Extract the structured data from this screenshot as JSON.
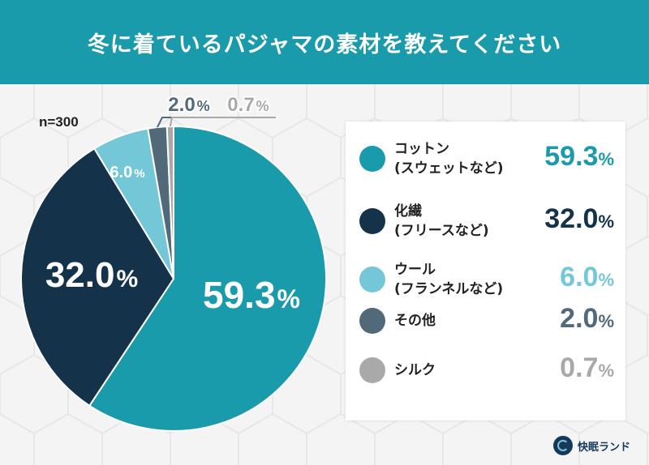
{
  "header": {
    "title": "冬に着ているパジャマの素材を教えてください"
  },
  "sample_size": "n=300",
  "brand": {
    "name": "快眠ランド",
    "logo_icon": "pajama-brand-logo-icon"
  },
  "colors": {
    "header_bg": "#1a9bab",
    "cotton": "#1a9bab",
    "synthetic": "#14334a",
    "wool": "#74c7d6",
    "other": "#52697a",
    "silk": "#a9a9a9"
  },
  "chart_data": {
    "type": "pie",
    "title": "冬に着ているパジャマの素材を教えてください",
    "start_angle": "12 o'clock, clockwise",
    "slices": [
      {
        "name": "コットン",
        "sub": "(スウェットなど)",
        "value": 59.3,
        "label": "59.3",
        "unit": "%",
        "color": "#1a9bab"
      },
      {
        "name": "化繊",
        "sub": "(フリースなど)",
        "value": 32.0,
        "label": "32.0",
        "unit": "%",
        "color": "#14334a"
      },
      {
        "name": "ウール",
        "sub": "(フランネルなど)",
        "value": 6.0,
        "label": "6.0",
        "unit": "%",
        "color": "#74c7d6"
      },
      {
        "name": "その他",
        "sub": "",
        "value": 2.0,
        "label": "2.0",
        "unit": "%",
        "color": "#52697a"
      },
      {
        "name": "シルク",
        "sub": "",
        "value": 0.7,
        "label": "0.7",
        "unit": "%",
        "color": "#a9a9a9"
      }
    ],
    "legend_position": "right"
  }
}
